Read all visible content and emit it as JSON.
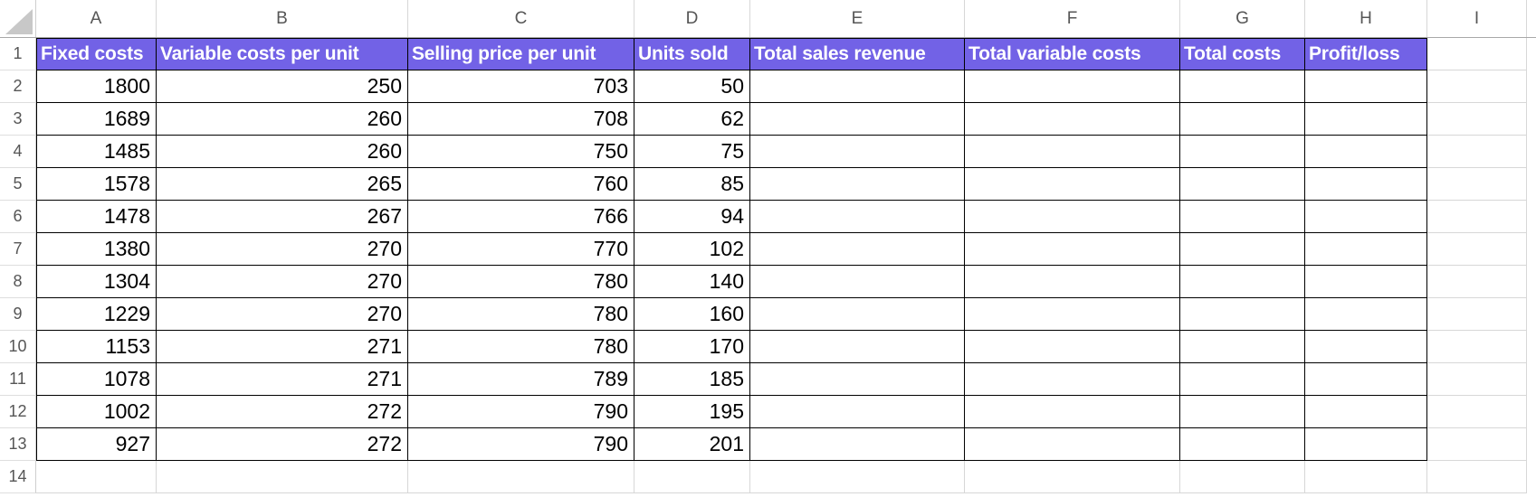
{
  "sheet": {
    "title": "break-even-analysis-worksheet",
    "column_letters": [
      "A",
      "B",
      "C",
      "D",
      "E",
      "F",
      "G",
      "H",
      "I"
    ],
    "row_numbers": [
      "1",
      "2",
      "3",
      "4",
      "5",
      "6",
      "7",
      "8",
      "9",
      "10",
      "11",
      "12",
      "13",
      "14"
    ],
    "header_row": {
      "labels": [
        "Fixed costs",
        "Variable costs per unit",
        "Selling price per unit",
        "Units sold",
        "Total sales revenue",
        "Total variable costs",
        "Total costs",
        "Profit/loss"
      ]
    },
    "rows": [
      [
        1800,
        250,
        703,
        50
      ],
      [
        1689,
        260,
        708,
        62
      ],
      [
        1485,
        260,
        750,
        75
      ],
      [
        1578,
        265,
        760,
        85
      ],
      [
        1478,
        267,
        766,
        94
      ],
      [
        1380,
        270,
        770,
        102
      ],
      [
        1304,
        270,
        780,
        140
      ],
      [
        1229,
        270,
        780,
        160
      ],
      [
        1153,
        271,
        780,
        170
      ],
      [
        1078,
        271,
        789,
        185
      ],
      [
        1002,
        272,
        790,
        195
      ],
      [
        927,
        272,
        790,
        201
      ]
    ],
    "colors": {
      "header_fill": "#7262e6",
      "header_text": "#ffffff",
      "cell_border": "#000000",
      "grid_line": "#d7d7d7",
      "label_text": "#565656"
    }
  }
}
